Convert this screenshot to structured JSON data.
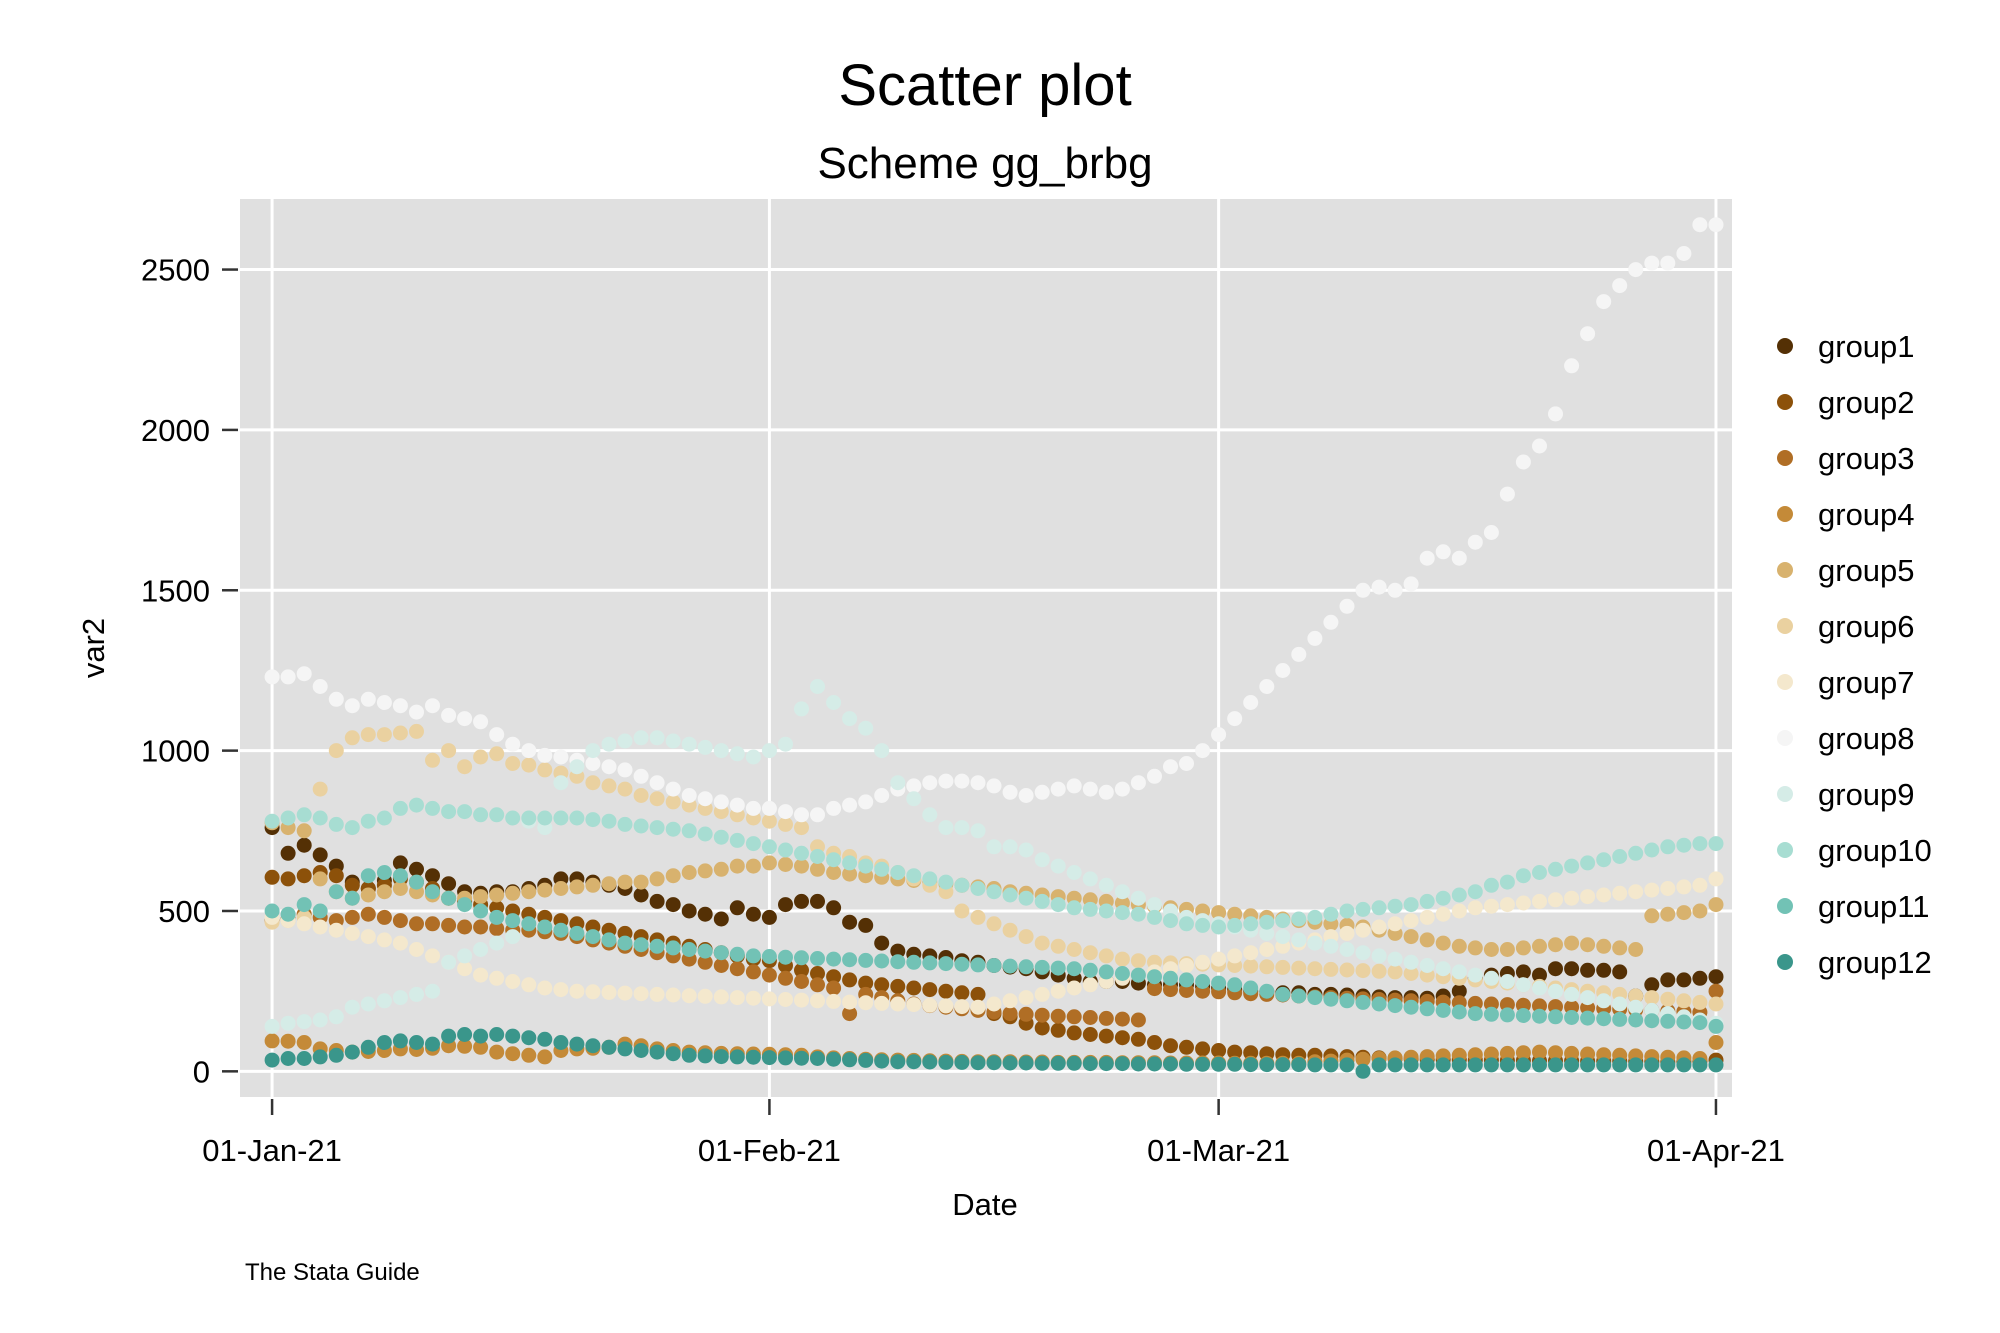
{
  "chart_data": {
    "type": "scatter",
    "title": "Scatter plot",
    "subtitle": "Scheme gg_brbg",
    "xlabel": "Date",
    "ylabel": "var2",
    "note": "The Stata Guide",
    "x_axis": {
      "type": "date",
      "range": [
        "2020-12-30",
        "2021-04-02"
      ],
      "ticks": [
        {
          "value": "2021-01-01",
          "label": "01-Jan-21"
        },
        {
          "value": "2021-02-01",
          "label": "01-Feb-21"
        },
        {
          "value": "2021-03-01",
          "label": "01-Mar-21"
        },
        {
          "value": "2021-04-01",
          "label": "01-Apr-21"
        }
      ]
    },
    "y_axis": {
      "range": [
        -80,
        2720
      ],
      "ticks": [
        {
          "value": 0,
          "label": "0"
        },
        {
          "value": 500,
          "label": "500"
        },
        {
          "value": 1000,
          "label": "1000"
        },
        {
          "value": 1500,
          "label": "1500"
        },
        {
          "value": 2000,
          "label": "2000"
        },
        {
          "value": 2500,
          "label": "2500"
        }
      ]
    },
    "grid": true,
    "background": "#e0e0e0",
    "legend_position": "right",
    "x_start": "2021-01-01",
    "series": [
      {
        "name": "group1",
        "color": "#543005",
        "values": [
          760,
          680,
          705,
          675,
          640,
          590,
          570,
          595,
          650,
          630,
          610,
          585,
          560,
          555,
          560,
          560,
          570,
          580,
          600,
          600,
          590,
          580,
          570,
          550,
          530,
          520,
          500,
          490,
          475,
          510,
          490,
          480,
          520,
          530,
          530,
          510,
          465,
          455,
          400,
          375,
          365,
          360,
          355,
          345,
          340,
          330,
          325,
          320,
          310,
          300,
          290,
          280,
          280,
          280,
          275,
          270,
          270,
          270,
          265,
          260,
          255,
          250,
          248,
          245,
          245,
          240,
          240,
          238,
          235,
          232,
          230,
          230,
          228,
          235,
          250,
          290,
          300,
          305,
          310,
          300,
          320,
          320,
          315,
          315,
          310,
          235,
          270,
          285,
          285,
          290,
          295
        ]
      },
      {
        "name": "group2",
        "color": "#8c510a",
        "values": [
          605,
          600,
          610,
          620,
          610,
          580,
          570,
          580,
          600,
          590,
          570,
          540,
          530,
          520,
          510,
          500,
          490,
          480,
          470,
          460,
          450,
          440,
          430,
          420,
          410,
          400,
          390,
          380,
          370,
          360,
          350,
          345,
          330,
          315,
          305,
          295,
          285,
          275,
          270,
          265,
          260,
          255,
          250,
          245,
          240,
          180,
          170,
          150,
          135,
          128,
          120,
          115,
          110,
          105,
          100,
          90,
          80,
          75,
          70,
          65,
          60,
          58,
          55,
          52,
          50,
          50,
          48,
          46,
          44,
          42,
          40,
          39,
          38,
          37,
          36,
          35,
          35,
          34,
          34,
          33,
          33,
          33,
          32,
          32,
          32,
          31,
          30,
          29,
          30,
          32,
          35
        ]
      },
      {
        "name": "group3",
        "color": "#b06e25",
        "values": [
          470,
          475,
          490,
          480,
          470,
          480,
          490,
          480,
          470,
          460,
          460,
          455,
          450,
          450,
          445,
          440,
          440,
          435,
          430,
          420,
          410,
          400,
          390,
          380,
          370,
          360,
          350,
          340,
          330,
          320,
          310,
          300,
          290,
          280,
          270,
          260,
          180,
          240,
          230,
          220,
          210,
          205,
          200,
          195,
          190,
          185,
          180,
          178,
          175,
          172,
          170,
          168,
          165,
          163,
          160,
          258,
          255,
          252,
          250,
          248,
          245,
          242,
          240,
          238,
          235,
          232,
          230,
          228,
          226,
          224,
          222,
          220,
          218,
          216,
          214,
          212,
          210,
          208,
          206,
          204,
          202,
          200,
          198,
          196,
          194,
          192,
          190,
          188,
          186,
          184,
          250
        ]
      },
      {
        "name": "group4",
        "color": "#c48a38",
        "values": [
          95,
          94,
          90,
          70,
          65,
          60,
          62,
          65,
          70,
          68,
          72,
          80,
          78,
          75,
          60,
          55,
          50,
          45,
          65,
          70,
          72,
          75,
          85,
          80,
          70,
          65,
          60,
          58,
          56,
          55,
          54,
          53,
          52,
          50,
          45,
          42,
          40,
          38,
          36,
          35,
          34,
          33,
          32,
          31,
          30,
          30,
          30,
          29,
          29,
          28,
          28,
          28,
          28,
          27,
          27,
          27,
          26,
          26,
          26,
          26,
          25,
          25,
          25,
          25,
          25,
          30,
          32,
          35,
          38,
          40,
          42,
          44,
          46,
          48,
          50,
          52,
          54,
          56,
          58,
          60,
          58,
          56,
          54,
          52,
          50,
          48,
          46,
          44,
          42,
          40,
          90
        ]
      },
      {
        "name": "group5",
        "color": "#d8b26e",
        "values": [
          775,
          760,
          750,
          600,
          560,
          540,
          550,
          560,
          570,
          560,
          550,
          540,
          540,
          545,
          550,
          555,
          560,
          565,
          570,
          575,
          580,
          585,
          590,
          590,
          600,
          610,
          620,
          625,
          630,
          640,
          640,
          650,
          645,
          640,
          630,
          620,
          615,
          610,
          605,
          600,
          595,
          590,
          585,
          580,
          575,
          570,
          560,
          555,
          550,
          545,
          540,
          535,
          530,
          525,
          520,
          515,
          510,
          505,
          500,
          495,
          490,
          485,
          480,
          475,
          470,
          465,
          460,
          455,
          450,
          440,
          430,
          420,
          410,
          400,
          390,
          385,
          380,
          380,
          385,
          390,
          395,
          400,
          395,
          390,
          385,
          380,
          485,
          490,
          495,
          500,
          520
        ]
      },
      {
        "name": "group6",
        "color": "#ead1a0",
        "values": [
          465,
          470,
          480,
          880,
          1000,
          1040,
          1050,
          1050,
          1055,
          1060,
          970,
          1000,
          950,
          980,
          990,
          960,
          955,
          940,
          930,
          920,
          900,
          890,
          880,
          860,
          850,
          840,
          830,
          820,
          810,
          800,
          790,
          780,
          770,
          760,
          700,
          680,
          670,
          650,
          640,
          620,
          600,
          580,
          560,
          500,
          480,
          460,
          440,
          420,
          400,
          390,
          380,
          370,
          360,
          350,
          345,
          340,
          338,
          336,
          334,
          332,
          330,
          328,
          326,
          324,
          322,
          320,
          318,
          316,
          314,
          312,
          310,
          305,
          300,
          295,
          290,
          285,
          280,
          275,
          270,
          265,
          260,
          255,
          250,
          245,
          240,
          235,
          230,
          225,
          220,
          215,
          210
        ]
      },
      {
        "name": "group7",
        "color": "#f4e8cd",
        "values": [
          480,
          470,
          460,
          450,
          440,
          430,
          420,
          410,
          400,
          380,
          360,
          340,
          320,
          300,
          290,
          280,
          270,
          260,
          255,
          250,
          248,
          246,
          244,
          242,
          240,
          238,
          236,
          234,
          232,
          230,
          228,
          226,
          224,
          222,
          220,
          218,
          216,
          214,
          212,
          210,
          208,
          206,
          204,
          202,
          200,
          210,
          220,
          230,
          240,
          250,
          260,
          270,
          280,
          290,
          300,
          310,
          320,
          330,
          340,
          350,
          360,
          370,
          380,
          390,
          400,
          410,
          420,
          430,
          440,
          450,
          460,
          470,
          480,
          490,
          500,
          510,
          515,
          520,
          525,
          530,
          535,
          540,
          545,
          550,
          555,
          560,
          565,
          570,
          575,
          580,
          600
        ]
      },
      {
        "name": "group8",
        "color": "#f5f5f5",
        "values": [
          1230,
          1230,
          1240,
          1200,
          1160,
          1140,
          1160,
          1150,
          1140,
          1120,
          1140,
          1110,
          1100,
          1090,
          1050,
          1020,
          1000,
          985,
          980,
          970,
          960,
          950,
          940,
          920,
          900,
          880,
          860,
          850,
          840,
          830,
          820,
          820,
          810,
          800,
          800,
          820,
          830,
          840,
          860,
          880,
          890,
          900,
          905,
          905,
          900,
          890,
          870,
          860,
          870,
          880,
          890,
          880,
          870,
          880,
          900,
          920,
          950,
          960,
          1000,
          1050,
          1100,
          1150,
          1200,
          1250,
          1300,
          1350,
          1400,
          1450,
          1500,
          1510,
          1500,
          1520,
          1600,
          1620,
          1600,
          1650,
          1680,
          1800,
          1900,
          1950,
          2050,
          2200,
          2300,
          2400,
          2450,
          2500,
          2520,
          2520,
          2550,
          2640,
          2640
        ]
      },
      {
        "name": "group9",
        "color": "#d5ece7",
        "values": [
          140,
          150,
          155,
          160,
          170,
          200,
          210,
          220,
          230,
          240,
          250,
          340,
          360,
          380,
          400,
          420,
          780,
          760,
          900,
          950,
          1000,
          1020,
          1030,
          1040,
          1040,
          1030,
          1020,
          1010,
          1000,
          990,
          980,
          1000,
          1020,
          1130,
          1200,
          1150,
          1100,
          1070,
          1000,
          900,
          850,
          800,
          760,
          760,
          750,
          700,
          700,
          690,
          660,
          640,
          620,
          600,
          580,
          560,
          540,
          520,
          500,
          480,
          470,
          460,
          450,
          440,
          430,
          420,
          410,
          400,
          390,
          380,
          370,
          360,
          350,
          340,
          330,
          320,
          310,
          300,
          290,
          280,
          270,
          260,
          250,
          240,
          230,
          220,
          210,
          200,
          190,
          180,
          170,
          160,
          150
        ]
      },
      {
        "name": "group10",
        "color": "#a7ddd2",
        "values": [
          780,
          790,
          800,
          790,
          770,
          760,
          780,
          790,
          820,
          830,
          820,
          810,
          810,
          800,
          800,
          790,
          790,
          790,
          790,
          790,
          785,
          780,
          770,
          765,
          760,
          755,
          750,
          740,
          730,
          720,
          710,
          700,
          690,
          680,
          670,
          660,
          650,
          640,
          630,
          620,
          610,
          600,
          590,
          580,
          570,
          560,
          550,
          540,
          530,
          520,
          510,
          505,
          500,
          495,
          490,
          480,
          470,
          460,
          455,
          450,
          455,
          460,
          465,
          470,
          475,
          480,
          490,
          500,
          505,
          510,
          515,
          520,
          530,
          540,
          550,
          560,
          580,
          590,
          610,
          620,
          630,
          640,
          650,
          660,
          670,
          680,
          690,
          700,
          705,
          710,
          710
        ]
      },
      {
        "name": "group11",
        "color": "#72c2b5",
        "values": [
          500,
          490,
          520,
          500,
          560,
          540,
          610,
          620,
          610,
          590,
          560,
          540,
          520,
          500,
          480,
          470,
          460,
          450,
          440,
          430,
          420,
          410,
          400,
          395,
          390,
          385,
          380,
          375,
          370,
          365,
          360,
          358,
          356,
          354,
          352,
          350,
          348,
          346,
          344,
          342,
          340,
          338,
          336,
          334,
          332,
          330,
          328,
          326,
          324,
          322,
          320,
          315,
          310,
          305,
          300,
          295,
          290,
          285,
          280,
          275,
          270,
          260,
          250,
          240,
          235,
          230,
          225,
          220,
          215,
          210,
          205,
          200,
          195,
          190,
          185,
          180,
          178,
          176,
          174,
          172,
          170,
          168,
          166,
          164,
          162,
          160,
          158,
          156,
          154,
          152,
          140
        ]
      },
      {
        "name": "group12",
        "color": "#3a968b",
        "values": [
          35,
          40,
          40,
          45,
          50,
          60,
          75,
          90,
          95,
          90,
          85,
          110,
          115,
          110,
          115,
          110,
          105,
          100,
          90,
          85,
          80,
          75,
          70,
          65,
          60,
          55,
          50,
          48,
          46,
          45,
          44,
          43,
          42,
          41,
          40,
          38,
          36,
          34,
          32,
          30,
          30,
          29,
          28,
          28,
          27,
          27,
          26,
          26,
          25,
          25,
          25,
          24,
          24,
          24,
          23,
          23,
          23,
          22,
          22,
          22,
          22,
          21,
          21,
          21,
          21,
          20,
          20,
          20,
          0,
          20,
          20,
          20,
          20,
          20,
          20,
          20,
          20,
          20,
          20,
          20,
          20,
          20,
          20,
          20,
          20,
          20,
          20,
          20,
          20,
          20,
          20
        ]
      }
    ]
  }
}
